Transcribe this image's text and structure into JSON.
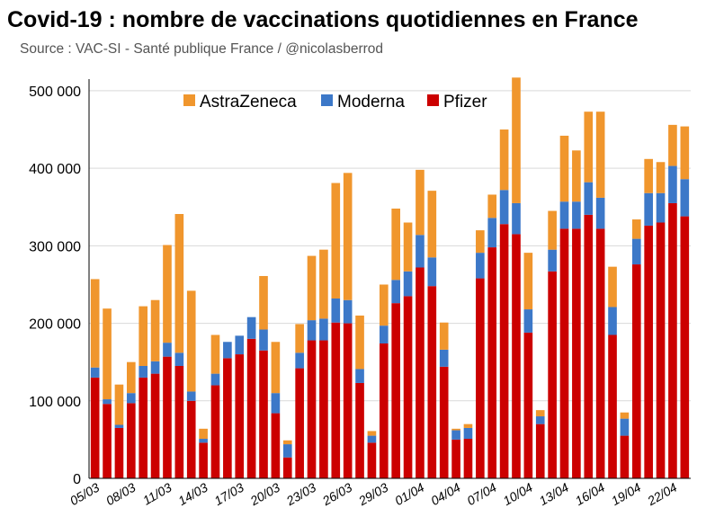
{
  "title": "Covid-19 : nombre de vaccinations quotidiennes en France",
  "subtitle": "Source : VAC-SI - Santé publique France / @nicolasberrod",
  "chart_data": {
    "type": "bar",
    "stacked": true,
    "title": "Covid-19 : nombre de vaccinations quotidiennes en France",
    "subtitle": "Source : VAC-SI - Santé publique France / @nicolasberrod",
    "xlabel": "",
    "ylabel": "",
    "ylim": [
      0,
      515000
    ],
    "yticks": [
      0,
      100000,
      200000,
      300000,
      400000,
      500000
    ],
    "ytick_labels": [
      "0",
      "100 000",
      "200 000",
      "300 000",
      "400 000",
      "500 000"
    ],
    "grid": "horizontal",
    "legend_position": "top",
    "categories": [
      "05/03",
      "06/03",
      "07/03",
      "08/03",
      "09/03",
      "10/03",
      "11/03",
      "12/03",
      "13/03",
      "14/03",
      "15/03",
      "16/03",
      "17/03",
      "18/03",
      "19/03",
      "20/03",
      "21/03",
      "22/03",
      "23/03",
      "24/03",
      "25/03",
      "26/03",
      "27/03",
      "28/03",
      "29/03",
      "30/03",
      "31/03",
      "01/04",
      "02/04",
      "03/04",
      "04/04",
      "05/04",
      "06/04",
      "07/04",
      "08/04",
      "09/04",
      "10/04",
      "11/04",
      "12/04",
      "13/04",
      "14/04",
      "15/04",
      "16/04",
      "17/04",
      "18/04",
      "19/04",
      "20/04",
      "21/04",
      "22/04",
      "23/04"
    ],
    "xtick_labels": [
      "05/03",
      "08/03",
      "11/03",
      "14/03",
      "17/03",
      "20/03",
      "23/03",
      "26/03",
      "29/03",
      "01/04",
      "04/04",
      "07/04",
      "10/04",
      "13/04",
      "16/04",
      "19/04",
      "22/04"
    ],
    "series": [
      {
        "name": "Pfizer",
        "color": "#cc0000",
        "values": [
          130000,
          96000,
          65000,
          97000,
          130000,
          135000,
          157000,
          145000,
          100000,
          46000,
          120000,
          155000,
          160000,
          180000,
          165000,
          84000,
          27000,
          142000,
          178000,
          178000,
          201000,
          200000,
          123000,
          46000,
          174000,
          226000,
          235000,
          272000,
          248000,
          144000,
          50000,
          51000,
          258000,
          298000,
          328000,
          315000,
          188000,
          70000,
          267000,
          322000,
          322000,
          340000,
          322000,
          185000,
          55000,
          276000,
          326000,
          330000,
          355000,
          338000
        ]
      },
      {
        "name": "Moderna",
        "color": "#3c78c8",
        "values": [
          13000,
          6000,
          4000,
          13000,
          15000,
          16000,
          18000,
          17000,
          12000,
          5000,
          15000,
          21000,
          24000,
          28000,
          27000,
          26000,
          17000,
          20000,
          26000,
          28000,
          31000,
          30000,
          18000,
          9000,
          23000,
          30000,
          32000,
          42000,
          37000,
          22000,
          12000,
          14000,
          33000,
          38000,
          44000,
          40000,
          30000,
          10000,
          28000,
          35000,
          35000,
          42000,
          40000,
          36000,
          22000,
          33000,
          42000,
          38000,
          48000,
          48000
        ]
      },
      {
        "name": "AstraZeneca",
        "color": "#f0962d",
        "values": [
          114000,
          117000,
          52000,
          40000,
          77000,
          79000,
          126000,
          179000,
          130000,
          13000,
          50000,
          0,
          0,
          0,
          69000,
          66000,
          5000,
          37000,
          83000,
          89000,
          149000,
          164000,
          69000,
          6000,
          53000,
          92000,
          63000,
          84000,
          86000,
          35000,
          2000,
          5000,
          29000,
          30000,
          78000,
          162000,
          73000,
          8000,
          50000,
          85000,
          66000,
          91000,
          111000,
          52000,
          8000,
          25000,
          44000,
          40000,
          53000,
          68000
        ]
      }
    ]
  },
  "colors": {
    "pfizer": "#cc0000",
    "moderna": "#3c78c8",
    "astrazeneca": "#f0962d",
    "grid": "#d9d9d9",
    "axis": "#000000"
  }
}
